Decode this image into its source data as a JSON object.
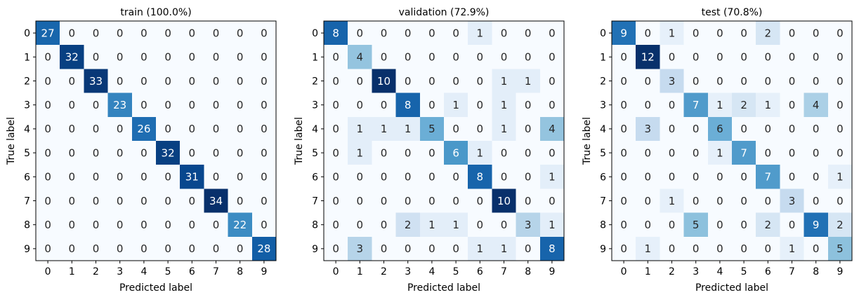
{
  "chart_data": [
    {
      "type": "heatmap",
      "title": "train (100.0%)",
      "xlabel": "Predicted label",
      "ylabel": "True label",
      "labels": [
        "0",
        "1",
        "2",
        "3",
        "4",
        "5",
        "6",
        "7",
        "8",
        "9"
      ],
      "matrix": [
        [
          27,
          0,
          0,
          0,
          0,
          0,
          0,
          0,
          0,
          0
        ],
        [
          0,
          32,
          0,
          0,
          0,
          0,
          0,
          0,
          0,
          0
        ],
        [
          0,
          0,
          33,
          0,
          0,
          0,
          0,
          0,
          0,
          0
        ],
        [
          0,
          0,
          0,
          23,
          0,
          0,
          0,
          0,
          0,
          0
        ],
        [
          0,
          0,
          0,
          0,
          26,
          0,
          0,
          0,
          0,
          0
        ],
        [
          0,
          0,
          0,
          0,
          0,
          32,
          0,
          0,
          0,
          0
        ],
        [
          0,
          0,
          0,
          0,
          0,
          0,
          31,
          0,
          0,
          0
        ],
        [
          0,
          0,
          0,
          0,
          0,
          0,
          0,
          34,
          0,
          0
        ],
        [
          0,
          0,
          0,
          0,
          0,
          0,
          0,
          0,
          22,
          0
        ],
        [
          0,
          0,
          0,
          0,
          0,
          0,
          0,
          0,
          0,
          28
        ]
      ],
      "colormap": "Blues"
    },
    {
      "type": "heatmap",
      "title": "validation (72.9%)",
      "xlabel": "Predicted label",
      "ylabel": "True label",
      "labels": [
        "0",
        "1",
        "2",
        "3",
        "4",
        "5",
        "6",
        "7",
        "8",
        "9"
      ],
      "matrix": [
        [
          8,
          0,
          0,
          0,
          0,
          0,
          1,
          0,
          0,
          0
        ],
        [
          0,
          4,
          0,
          0,
          0,
          0,
          0,
          0,
          0,
          0
        ],
        [
          0,
          0,
          10,
          0,
          0,
          0,
          0,
          1,
          1,
          0
        ],
        [
          0,
          0,
          0,
          8,
          0,
          1,
          0,
          1,
          0,
          0
        ],
        [
          0,
          1,
          1,
          1,
          5,
          0,
          0,
          1,
          0,
          4
        ],
        [
          0,
          1,
          0,
          0,
          0,
          6,
          1,
          0,
          0,
          0
        ],
        [
          0,
          0,
          0,
          0,
          0,
          0,
          8,
          0,
          0,
          1
        ],
        [
          0,
          0,
          0,
          0,
          0,
          0,
          0,
          10,
          0,
          0
        ],
        [
          0,
          0,
          0,
          2,
          1,
          1,
          0,
          0,
          3,
          1
        ],
        [
          0,
          3,
          0,
          0,
          0,
          0,
          1,
          1,
          0,
          8
        ]
      ],
      "colormap": "Blues"
    },
    {
      "type": "heatmap",
      "title": "test (70.8%)",
      "xlabel": "Predicted label",
      "ylabel": "True label",
      "labels": [
        "0",
        "1",
        "2",
        "3",
        "4",
        "5",
        "6",
        "7",
        "8",
        "9"
      ],
      "matrix": [
        [
          9,
          0,
          1,
          0,
          0,
          0,
          2,
          0,
          0,
          0
        ],
        [
          0,
          12,
          0,
          0,
          0,
          0,
          0,
          0,
          0,
          0
        ],
        [
          0,
          0,
          3,
          0,
          0,
          0,
          0,
          0,
          0,
          0
        ],
        [
          0,
          0,
          0,
          7,
          1,
          2,
          1,
          0,
          4,
          0
        ],
        [
          0,
          3,
          0,
          0,
          6,
          0,
          0,
          0,
          0,
          0
        ],
        [
          0,
          0,
          0,
          0,
          1,
          7,
          0,
          0,
          0,
          0
        ],
        [
          0,
          0,
          0,
          0,
          0,
          0,
          7,
          0,
          0,
          1
        ],
        [
          0,
          0,
          1,
          0,
          0,
          0,
          0,
          3,
          0,
          0
        ],
        [
          0,
          0,
          0,
          5,
          0,
          0,
          2,
          0,
          9,
          2
        ],
        [
          0,
          1,
          0,
          0,
          0,
          0,
          0,
          1,
          0,
          5
        ]
      ],
      "colormap": "Blues"
    }
  ]
}
